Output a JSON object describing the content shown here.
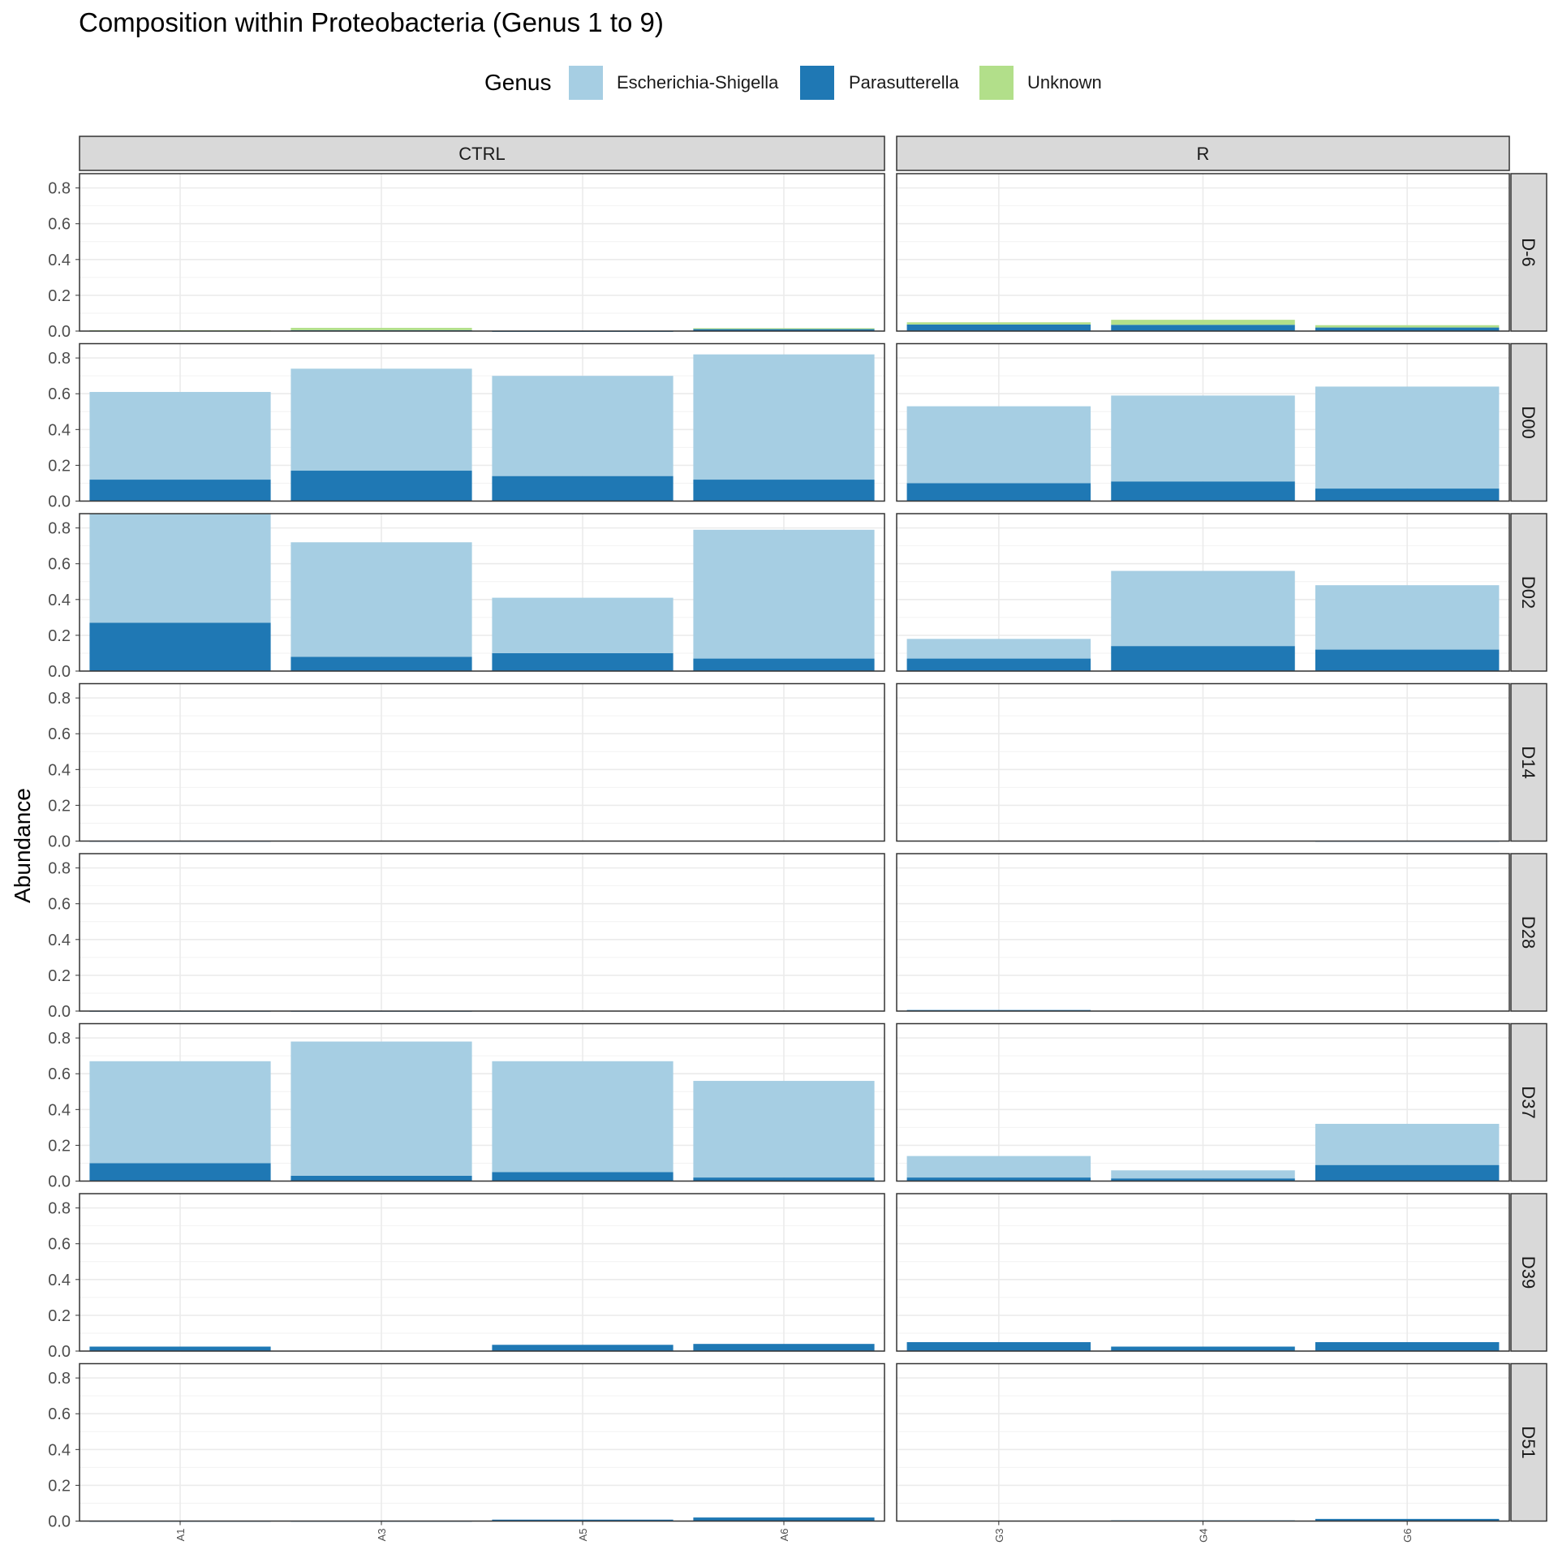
{
  "chart_data": {
    "type": "bar",
    "stacked": true,
    "title": "Composition within Proteobacteria (Genus 1 to 9)",
    "ylabel": "Abundance",
    "xlabel": "",
    "ylim": [
      0,
      0.88
    ],
    "y_ticks": [
      "0.0",
      "0.2",
      "0.4",
      "0.6",
      "0.8"
    ],
    "y_tick_values": [
      0,
      0.2,
      0.4,
      0.6,
      0.8
    ],
    "legend": {
      "title": "Genus",
      "position": "top",
      "entries": [
        {
          "name": "Escherichia-Shigella",
          "color": "#a6cee3"
        },
        {
          "name": "Parasutterella",
          "color": "#1f78b4"
        },
        {
          "name": "Unknown",
          "color": "#b2df8a"
        }
      ]
    },
    "facet_columns": [
      {
        "name": "CTRL",
        "samples": [
          "A1",
          "A3",
          "A5",
          "A6"
        ]
      },
      {
        "name": "R",
        "samples": [
          "G3",
          "G4",
          "G6"
        ]
      }
    ],
    "facet_rows": [
      {
        "name": "D-6",
        "cells": {
          "CTRL": [
            {
              "Parasutterella": 0.003,
              "Unknown": 0.002,
              "Escherichia-Shigella": 0
            },
            {
              "Parasutterella": 0.005,
              "Unknown": 0.013,
              "Escherichia-Shigella": 0
            },
            {
              "Parasutterella": 0.001,
              "Unknown": 0.0,
              "Escherichia-Shigella": 0
            },
            {
              "Parasutterella": 0.013,
              "Unknown": 0.003,
              "Escherichia-Shigella": 0
            }
          ],
          "R": [
            {
              "Parasutterella": 0.037,
              "Unknown": 0.012,
              "Escherichia-Shigella": 0
            },
            {
              "Parasutterella": 0.035,
              "Unknown": 0.028,
              "Escherichia-Shigella": 0
            },
            {
              "Parasutterella": 0.02,
              "Unknown": 0.013,
              "Escherichia-Shigella": 0
            }
          ]
        }
      },
      {
        "name": "D00",
        "cells": {
          "CTRL": [
            {
              "Parasutterella": 0.12,
              "Unknown": 0,
              "Escherichia-Shigella": 0.49
            },
            {
              "Parasutterella": 0.17,
              "Unknown": 0,
              "Escherichia-Shigella": 0.57
            },
            {
              "Parasutterella": 0.14,
              "Unknown": 0,
              "Escherichia-Shigella": 0.56
            },
            {
              "Parasutterella": 0.12,
              "Unknown": 0,
              "Escherichia-Shigella": 0.7
            }
          ],
          "R": [
            {
              "Parasutterella": 0.1,
              "Unknown": 0,
              "Escherichia-Shigella": 0.43
            },
            {
              "Parasutterella": 0.11,
              "Unknown": 0,
              "Escherichia-Shigella": 0.48
            },
            {
              "Parasutterella": 0.07,
              "Unknown": 0,
              "Escherichia-Shigella": 0.57
            }
          ]
        }
      },
      {
        "name": "D02",
        "cells": {
          "CTRL": [
            {
              "Parasutterella": 0.27,
              "Unknown": 0,
              "Escherichia-Shigella": 0.62
            },
            {
              "Parasutterella": 0.08,
              "Unknown": 0,
              "Escherichia-Shigella": 0.64
            },
            {
              "Parasutterella": 0.1,
              "Unknown": 0,
              "Escherichia-Shigella": 0.31
            },
            {
              "Parasutterella": 0.07,
              "Unknown": 0,
              "Escherichia-Shigella": 0.72
            }
          ],
          "R": [
            {
              "Parasutterella": 0.07,
              "Unknown": 0,
              "Escherichia-Shigella": 0.11
            },
            {
              "Parasutterella": 0.14,
              "Unknown": 0,
              "Escherichia-Shigella": 0.42
            },
            {
              "Parasutterella": 0.12,
              "Unknown": 0,
              "Escherichia-Shigella": 0.36
            }
          ]
        }
      },
      {
        "name": "D14",
        "cells": {
          "CTRL": [
            {
              "Parasutterella": 0.002,
              "Unknown": 0,
              "Escherichia-Shigella": 0
            },
            {
              "Parasutterella": 0,
              "Unknown": 0,
              "Escherichia-Shigella": 0
            },
            {
              "Parasutterella": 0,
              "Unknown": 0,
              "Escherichia-Shigella": 0
            },
            {
              "Parasutterella": 0,
              "Unknown": 0,
              "Escherichia-Shigella": 0
            }
          ],
          "R": [
            {
              "Parasutterella": 0,
              "Unknown": 0,
              "Escherichia-Shigella": 0
            },
            {
              "Parasutterella": 0,
              "Unknown": 0,
              "Escherichia-Shigella": 0
            },
            {
              "Parasutterella": 0.002,
              "Unknown": 0,
              "Escherichia-Shigella": 0
            }
          ]
        }
      },
      {
        "name": "D28",
        "cells": {
          "CTRL": [
            {
              "Parasutterella": 0.002,
              "Unknown": 0,
              "Escherichia-Shigella": 0
            },
            {
              "Parasutterella": 0.002,
              "Unknown": 0,
              "Escherichia-Shigella": 0
            },
            {
              "Parasutterella": 0,
              "Unknown": 0,
              "Escherichia-Shigella": 0
            },
            {
              "Parasutterella": 0,
              "Unknown": 0,
              "Escherichia-Shigella": 0
            }
          ],
          "R": [
            {
              "Parasutterella": 0.006,
              "Unknown": 0,
              "Escherichia-Shigella": 0
            },
            {
              "Parasutterella": 0,
              "Unknown": 0,
              "Escherichia-Shigella": 0
            },
            {
              "Parasutterella": 0,
              "Unknown": 0,
              "Escherichia-Shigella": 0
            }
          ]
        }
      },
      {
        "name": "D37",
        "cells": {
          "CTRL": [
            {
              "Parasutterella": 0.1,
              "Unknown": 0,
              "Escherichia-Shigella": 0.57
            },
            {
              "Parasutterella": 0.03,
              "Unknown": 0,
              "Escherichia-Shigella": 0.75
            },
            {
              "Parasutterella": 0.05,
              "Unknown": 0,
              "Escherichia-Shigella": 0.62
            },
            {
              "Parasutterella": 0.02,
              "Unknown": 0,
              "Escherichia-Shigella": 0.54
            }
          ],
          "R": [
            {
              "Parasutterella": 0.02,
              "Unknown": 0,
              "Escherichia-Shigella": 0.12
            },
            {
              "Parasutterella": 0.015,
              "Unknown": 0,
              "Escherichia-Shigella": 0.045
            },
            {
              "Parasutterella": 0.09,
              "Unknown": 0,
              "Escherichia-Shigella": 0.23
            }
          ]
        }
      },
      {
        "name": "D39",
        "cells": {
          "CTRL": [
            {
              "Parasutterella": 0.025,
              "Unknown": 0,
              "Escherichia-Shigella": 0
            },
            {
              "Parasutterella": 0,
              "Unknown": 0,
              "Escherichia-Shigella": 0
            },
            {
              "Parasutterella": 0.035,
              "Unknown": 0,
              "Escherichia-Shigella": 0
            },
            {
              "Parasutterella": 0.04,
              "Unknown": 0,
              "Escherichia-Shigella": 0
            }
          ],
          "R": [
            {
              "Parasutterella": 0.05,
              "Unknown": 0,
              "Escherichia-Shigella": 0
            },
            {
              "Parasutterella": 0.025,
              "Unknown": 0,
              "Escherichia-Shigella": 0
            },
            {
              "Parasutterella": 0.05,
              "Unknown": 0,
              "Escherichia-Shigella": 0
            }
          ]
        }
      },
      {
        "name": "D51",
        "cells": {
          "CTRL": [
            {
              "Parasutterella": 0.002,
              "Unknown": 0,
              "Escherichia-Shigella": 0
            },
            {
              "Parasutterella": 0.002,
              "Unknown": 0,
              "Escherichia-Shigella": 0
            },
            {
              "Parasutterella": 0.008,
              "Unknown": 0,
              "Escherichia-Shigella": 0
            },
            {
              "Parasutterella": 0.02,
              "Unknown": 0,
              "Escherichia-Shigella": 0
            }
          ],
          "R": [
            {
              "Parasutterella": 0,
              "Unknown": 0,
              "Escherichia-Shigella": 0
            },
            {
              "Parasutterella": 0.004,
              "Unknown": 0,
              "Escherichia-Shigella": 0
            },
            {
              "Parasutterella": 0.012,
              "Unknown": 0,
              "Escherichia-Shigella": 0
            }
          ]
        }
      }
    ],
    "stack_order": [
      "Parasutterella",
      "Unknown",
      "Escherichia-Shigella"
    ],
    "grid": true
  }
}
